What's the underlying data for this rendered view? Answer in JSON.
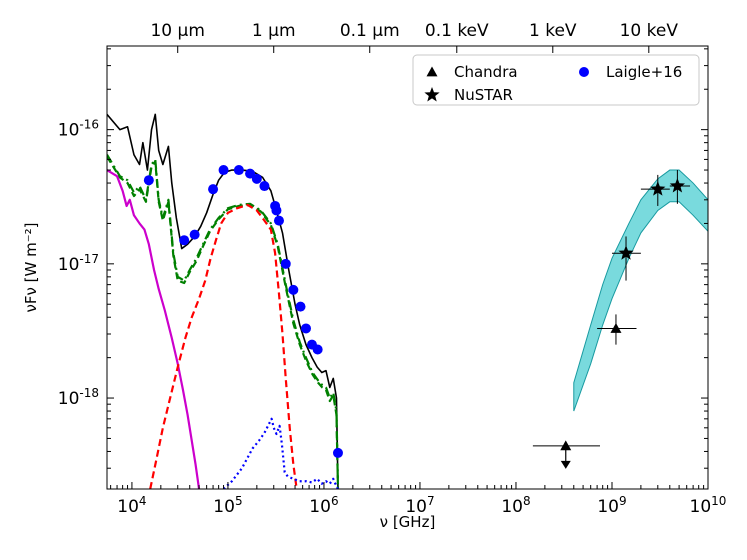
{
  "chart_data": {
    "type": "line",
    "title": "",
    "xlabel": "ν [GHz]",
    "ylabel": "νFν [W m⁻²]",
    "xscale": "log",
    "yscale": "log",
    "xlim": [
      5500,
      10000000000
    ],
    "ylim": [
      2.1e-19,
      4.2e-16
    ],
    "x_ticks": [
      {
        "value": 10000,
        "label": "10^4"
      },
      {
        "value": 100000,
        "label": "10^5"
      },
      {
        "value": 1000000,
        "label": "10^6"
      },
      {
        "value": 10000000,
        "label": "10^7"
      },
      {
        "value": 100000000,
        "label": "10^8"
      },
      {
        "value": 1000000000,
        "label": "10^9"
      },
      {
        "value": 10000000000,
        "label": "10^10"
      }
    ],
    "y_ticks": [
      {
        "value": 1e-18,
        "label": "10^-18"
      },
      {
        "value": 1e-17,
        "label": "10^-17"
      },
      {
        "value": 1e-16,
        "label": "10^-16"
      }
    ],
    "top_axis_ticks": [
      {
        "value": 29979,
        "label": "10 μm"
      },
      {
        "value": 299792,
        "label": "1 μm"
      },
      {
        "value": 2997925,
        "label": "0.1 μm"
      },
      {
        "value": 24180000,
        "label": "0.1 keV"
      },
      {
        "value": 241800000,
        "label": "1 keV"
      },
      {
        "value": 2418000000,
        "label": "10 keV"
      }
    ],
    "legend": {
      "position": "top-right",
      "entries": [
        {
          "label": "Chandra",
          "marker": "triangle"
        },
        {
          "label": "NuSTAR",
          "marker": "star"
        },
        {
          "label": "Laigle+16",
          "marker": "circle"
        }
      ]
    },
    "colors": {
      "total": "#000000",
      "agn_torus": "#008000",
      "starburst": "#cc00cc",
      "stellar": "#ff0000",
      "disk": "#0000ff",
      "laigle": "#0000ff",
      "band": "#40cbcf",
      "band_edge": "#189aa0"
    },
    "series": [
      {
        "name": "total",
        "style": "solid",
        "points": [
          [
            5500,
            1.3e-16
          ],
          [
            7500,
            1e-16
          ],
          [
            9000,
            1.05e-16
          ],
          [
            10500,
            6.5e-17
          ],
          [
            12000,
            5.5e-17
          ],
          [
            13000,
            8e-17
          ],
          [
            14500,
            5e-17
          ],
          [
            16000,
            1e-16
          ],
          [
            17500,
            1.3e-16
          ],
          [
            19000,
            7e-17
          ],
          [
            21000,
            5.5e-17
          ],
          [
            24000,
            7.5e-17
          ],
          [
            26000,
            4e-17
          ],
          [
            29000,
            2.2e-17
          ],
          [
            33000,
            1.3e-17
          ],
          [
            38000,
            1.4e-17
          ],
          [
            45000,
            1.6e-17
          ],
          [
            52000,
            1.9e-17
          ],
          [
            60000,
            2.4e-17
          ],
          [
            70000,
            3.3e-17
          ],
          [
            80000,
            4.2e-17
          ],
          [
            92000,
            4.8e-17
          ],
          [
            110000,
            5e-17
          ],
          [
            140000,
            5e-17
          ],
          [
            180000,
            4.9e-17
          ],
          [
            230000,
            4.4e-17
          ],
          [
            280000,
            3.5e-17
          ],
          [
            320000,
            2.5e-17
          ],
          [
            370000,
            1.7e-17
          ],
          [
            430000,
            9e-18
          ],
          [
            500000,
            5e-18
          ],
          [
            560000,
            3.5e-18
          ],
          [
            650000,
            2.5e-18
          ],
          [
            750000,
            2e-18
          ],
          [
            850000,
            1.7e-18
          ],
          [
            950000,
            1.55e-18
          ],
          [
            1050000,
            1.6e-18
          ],
          [
            1150000,
            1.2e-18
          ],
          [
            1250000,
            1.4e-18
          ],
          [
            1350000,
            1e-18
          ],
          [
            1400000,
            2.1e-19
          ]
        ]
      },
      {
        "name": "agn_torus",
        "style": "dashdot",
        "points": [
          [
            5500,
            6.5e-17
          ],
          [
            7500,
            4.5e-17
          ],
          [
            9000,
            4.2e-17
          ],
          [
            10500,
            3.4e-17
          ],
          [
            12000,
            3.8e-17
          ],
          [
            14000,
            3e-17
          ],
          [
            16000,
            5.5e-17
          ],
          [
            17500,
            6e-17
          ],
          [
            19000,
            3e-17
          ],
          [
            21000,
            2.2e-17
          ],
          [
            24000,
            3e-17
          ],
          [
            27000,
            1.2e-17
          ],
          [
            30000,
            8e-18
          ],
          [
            35000,
            7.5e-18
          ],
          [
            40000,
            9e-18
          ],
          [
            47000,
            1.1e-17
          ],
          [
            55000,
            1.4e-17
          ],
          [
            65000,
            1.8e-17
          ],
          [
            80000,
            2.2e-17
          ],
          [
            100000,
            2.6e-17
          ],
          [
            130000,
            2.75e-17
          ],
          [
            170000,
            2.8e-17
          ],
          [
            220000,
            2.5e-17
          ],
          [
            280000,
            2e-17
          ],
          [
            330000,
            1.4e-17
          ],
          [
            400000,
            7e-18
          ],
          [
            480000,
            3.8e-18
          ],
          [
            560000,
            2.6e-18
          ],
          [
            650000,
            2e-18
          ],
          [
            760000,
            1.55e-18
          ],
          [
            870000,
            1.35e-18
          ],
          [
            960000,
            1.25e-18
          ],
          [
            1050000,
            1.2e-18
          ],
          [
            1150000,
            1e-18
          ],
          [
            1250000,
            1.1e-18
          ],
          [
            1350000,
            8e-19
          ],
          [
            1400000,
            2.1e-19
          ]
        ]
      },
      {
        "name": "agn_torus_2",
        "style": "dashed",
        "points": [
          [
            5500,
            6.3e-17
          ],
          [
            7500,
            4.4e-17
          ],
          [
            9000,
            4e-17
          ],
          [
            10500,
            3.2e-17
          ],
          [
            12000,
            3.6e-17
          ],
          [
            14000,
            2.9e-17
          ],
          [
            16000,
            5.3e-17
          ],
          [
            17500,
            5.8e-17
          ],
          [
            19000,
            2.9e-17
          ],
          [
            21000,
            2.1e-17
          ],
          [
            24000,
            2.9e-17
          ],
          [
            27000,
            1.15e-17
          ],
          [
            30000,
            7.5e-18
          ],
          [
            35000,
            7.2e-18
          ],
          [
            40000,
            8.7e-18
          ],
          [
            47000,
            1.05e-17
          ],
          [
            55000,
            1.35e-17
          ],
          [
            65000,
            1.75e-17
          ],
          [
            80000,
            2.15e-17
          ],
          [
            100000,
            2.55e-17
          ],
          [
            130000,
            2.7e-17
          ],
          [
            170000,
            2.75e-17
          ],
          [
            220000,
            2.45e-17
          ],
          [
            280000,
            1.95e-17
          ],
          [
            330000,
            1.35e-17
          ],
          [
            400000,
            6.7e-18
          ],
          [
            480000,
            3.6e-18
          ],
          [
            560000,
            2.5e-18
          ],
          [
            650000,
            1.9e-18
          ],
          [
            760000,
            1.5e-18
          ],
          [
            870000,
            1.3e-18
          ],
          [
            960000,
            1.2e-18
          ],
          [
            1050000,
            1.15e-18
          ],
          [
            1150000,
            9.5e-19
          ],
          [
            1250000,
            1.05e-18
          ],
          [
            1350000,
            7.5e-19
          ],
          [
            1400000,
            2.1e-19
          ]
        ]
      },
      {
        "name": "starburst",
        "style": "solid",
        "points": [
          [
            5500,
            5e-17
          ],
          [
            7000,
            4.5e-17
          ],
          [
            8000,
            3.5e-17
          ],
          [
            8800,
            2.7e-17
          ],
          [
            9500,
            3e-17
          ],
          [
            10500,
            2.3e-17
          ],
          [
            12000,
            2e-17
          ],
          [
            13500,
            1.8e-17
          ],
          [
            15000,
            1.4e-17
          ],
          [
            17000,
            9e-18
          ],
          [
            19000,
            6.5e-18
          ],
          [
            22000,
            4.5e-18
          ],
          [
            26000,
            2.8e-18
          ],
          [
            30000,
            1.8e-18
          ],
          [
            34000,
            1.15e-18
          ],
          [
            38000,
            7.5e-19
          ],
          [
            42000,
            4.8e-19
          ],
          [
            46000,
            3.2e-19
          ],
          [
            50000,
            2.1e-19
          ]
        ]
      },
      {
        "name": "stellar",
        "style": "dashed",
        "points": [
          [
            15500,
            2.1e-19
          ],
          [
            18000,
            3.5e-19
          ],
          [
            21000,
            6e-19
          ],
          [
            25000,
            1e-18
          ],
          [
            30000,
            1.7e-18
          ],
          [
            36000,
            2.8e-18
          ],
          [
            42000,
            4e-18
          ],
          [
            50000,
            5.5e-18
          ],
          [
            58000,
            7.5e-18
          ],
          [
            66000,
            1.1e-17
          ],
          [
            75000,
            1.5e-17
          ],
          [
            85000,
            2e-17
          ],
          [
            100000,
            2.4e-17
          ],
          [
            125000,
            2.6e-17
          ],
          [
            160000,
            2.75e-17
          ],
          [
            200000,
            2.5e-17
          ],
          [
            240000,
            2.1e-17
          ],
          [
            280000,
            1.8e-17
          ],
          [
            310000,
            1.2e-17
          ],
          [
            340000,
            6e-18
          ],
          [
            370000,
            3e-18
          ],
          [
            400000,
            1.4e-18
          ],
          [
            440000,
            6e-19
          ],
          [
            480000,
            3.2e-19
          ],
          [
            520000,
            2.1e-19
          ]
        ]
      },
      {
        "name": "disk",
        "style": "dotted",
        "points": [
          [
            90000,
            2.1e-19
          ],
          [
            110000,
            2.4e-19
          ],
          [
            140000,
            3e-19
          ],
          [
            180000,
            4.2e-19
          ],
          [
            210000,
            4.8e-19
          ],
          [
            240000,
            5.5e-19
          ],
          [
            270000,
            6.5e-19
          ],
          [
            285000,
            7e-19
          ],
          [
            300000,
            6e-19
          ],
          [
            320000,
            5.4e-19
          ],
          [
            345000,
            6.2e-19
          ],
          [
            365000,
            4.5e-19
          ],
          [
            390000,
            2.8e-19
          ],
          [
            420000,
            2.6e-19
          ],
          [
            480000,
            2.5e-19
          ],
          [
            550000,
            2.4e-19
          ],
          [
            650000,
            2.4e-19
          ],
          [
            750000,
            2.35e-19
          ],
          [
            850000,
            2.5e-19
          ],
          [
            950000,
            2.3e-19
          ],
          [
            1050000,
            2.4e-19
          ],
          [
            1150000,
            2.3e-19
          ],
          [
            1250000,
            2.5e-19
          ],
          [
            1350000,
            2.2e-19
          ],
          [
            1400000,
            2.1e-19
          ]
        ]
      },
      {
        "name": "laigle16",
        "style": "points",
        "points": [
          [
            15000,
            4.2e-17
          ],
          [
            35000,
            1.5e-17
          ],
          [
            45000,
            1.65e-17
          ],
          [
            70000,
            3.6e-17
          ],
          [
            90000,
            5e-17
          ],
          [
            130000,
            5e-17
          ],
          [
            170000,
            4.7e-17
          ],
          [
            200000,
            4.3e-17
          ],
          [
            240000,
            3.8e-17
          ],
          [
            310000,
            2.7e-17
          ],
          [
            320000,
            2.5e-17
          ],
          [
            340000,
            2.1e-17
          ],
          [
            400000,
            1e-17
          ],
          [
            480000,
            6.4e-18
          ],
          [
            570000,
            4.8e-18
          ],
          [
            650000,
            3.3e-18
          ],
          [
            750000,
            2.5e-18
          ],
          [
            860000,
            2.3e-18
          ],
          [
            1400000,
            3.9e-19
          ]
        ]
      }
    ],
    "chandra": [
      {
        "x": 1100000000,
        "y": 3.3e-18,
        "x_err": [
          700000000,
          1800000000
        ],
        "y_err": [
          2.5e-18,
          4.2e-18
        ]
      },
      {
        "x": 330000000,
        "y": 4.4e-19,
        "x_err": [
          150000000,
          750000000
        ],
        "upper_limit": true
      }
    ],
    "nustar": [
      {
        "x": 1400000000,
        "y": 1.2e-17,
        "x_err": [
          1000000000,
          2000000000
        ],
        "y_err": [
          7.5e-18,
          1.6e-17
        ]
      },
      {
        "x": 3000000000,
        "y": 3.6e-17,
        "x_err": [
          2000000000,
          4000000000
        ],
        "y_err": [
          2.7e-17,
          4.6e-17
        ]
      },
      {
        "x": 4800000000,
        "y": 3.8e-17,
        "x_err": [
          4000000000,
          6500000000
        ],
        "y_err": [
          2.8e-17,
          5e-17
        ]
      }
    ],
    "xray_band": {
      "x": [
        400000000,
        600000000,
        800000000,
        1000000000,
        1500000000,
        2000000000,
        3000000000,
        4000000000,
        5000000000,
        7000000000,
        10000000000
      ],
      "upper": [
        1.3e-18,
        3.5e-18,
        7e-18,
        1.1e-17,
        2e-17,
        3e-17,
        4.3e-17,
        5e-17,
        5e-17,
        4e-17,
        3e-17
      ],
      "lower": [
        8e-19,
        1.8e-18,
        3.5e-18,
        5.5e-18,
        1.1e-17,
        1.7e-17,
        2.5e-17,
        2.9e-17,
        2.9e-17,
        2.3e-17,
        1.75e-17
      ]
    }
  }
}
